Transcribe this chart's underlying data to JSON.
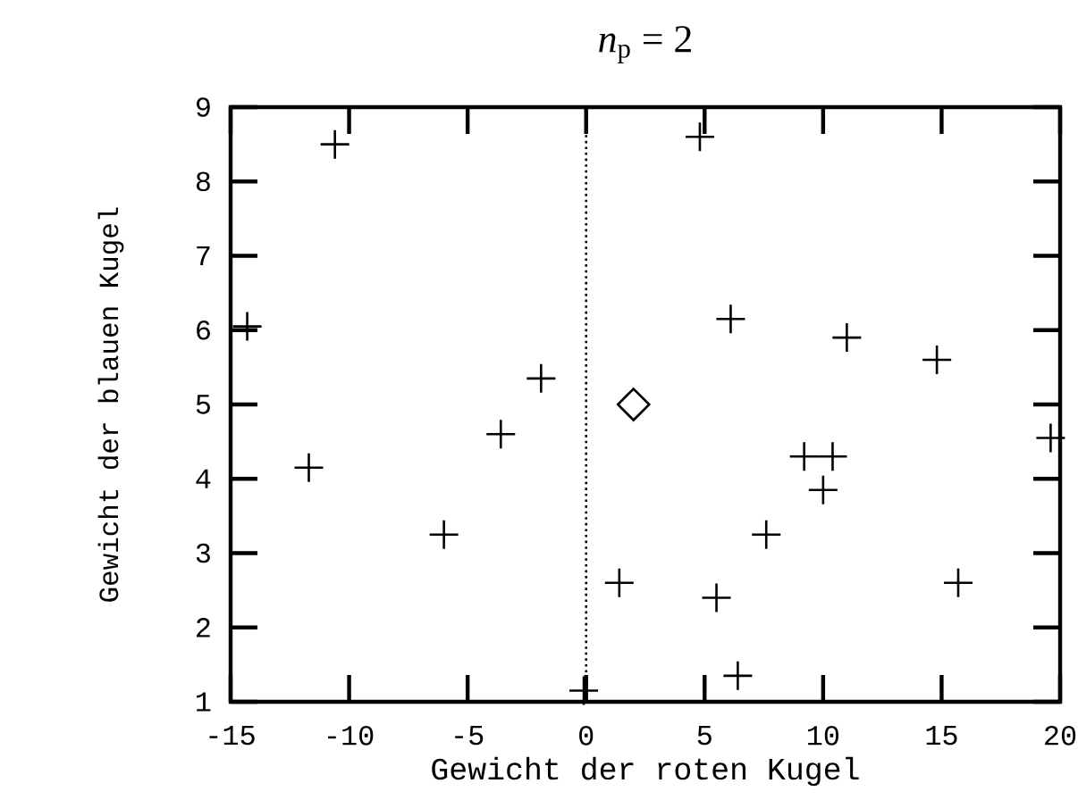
{
  "chart_data": {
    "type": "scatter",
    "title": "*n*$_{p}$ = 2",
    "xlabel": "Gewicht der roten Kugel",
    "ylabel": "Gewicht der blauen Kugel",
    "xlim": [
      -15,
      20
    ],
    "ylim": [
      1,
      9
    ],
    "xticks": [
      -15,
      -10,
      -5,
      0,
      5,
      10,
      15,
      20
    ],
    "yticks": [
      1,
      2,
      3,
      4,
      5,
      6,
      7,
      8,
      9
    ],
    "series": [
      {
        "color": "#000000",
        "marker": "cross",
        "x": [
          -10.6,
          -14.3,
          -11.7,
          -6.0,
          -3.6,
          -1.9,
          -0.1,
          1.4,
          4.8,
          6.1,
          5.5,
          6.4,
          7.6,
          9.2,
          10.4,
          10.0,
          11.0,
          14.8,
          15.7,
          19.6
        ],
        "values": [
          8.5,
          6.05,
          4.15,
          3.25,
          4.6,
          5.35,
          1.15,
          2.6,
          8.6,
          6.15,
          2.4,
          1.35,
          3.25,
          4.3,
          4.3,
          3.85,
          5.9,
          5.6,
          2.6,
          4.55
        ]
      },
      {
        "color": "#000000",
        "marker": "diamond",
        "x": [
          2
        ],
        "values": [
          5
        ]
      }
    ],
    "ref_lines": [
      {
        "axis": "x",
        "value": 0,
        "color": "#000000",
        "line_style": "dotted"
      }
    ]
  }
}
